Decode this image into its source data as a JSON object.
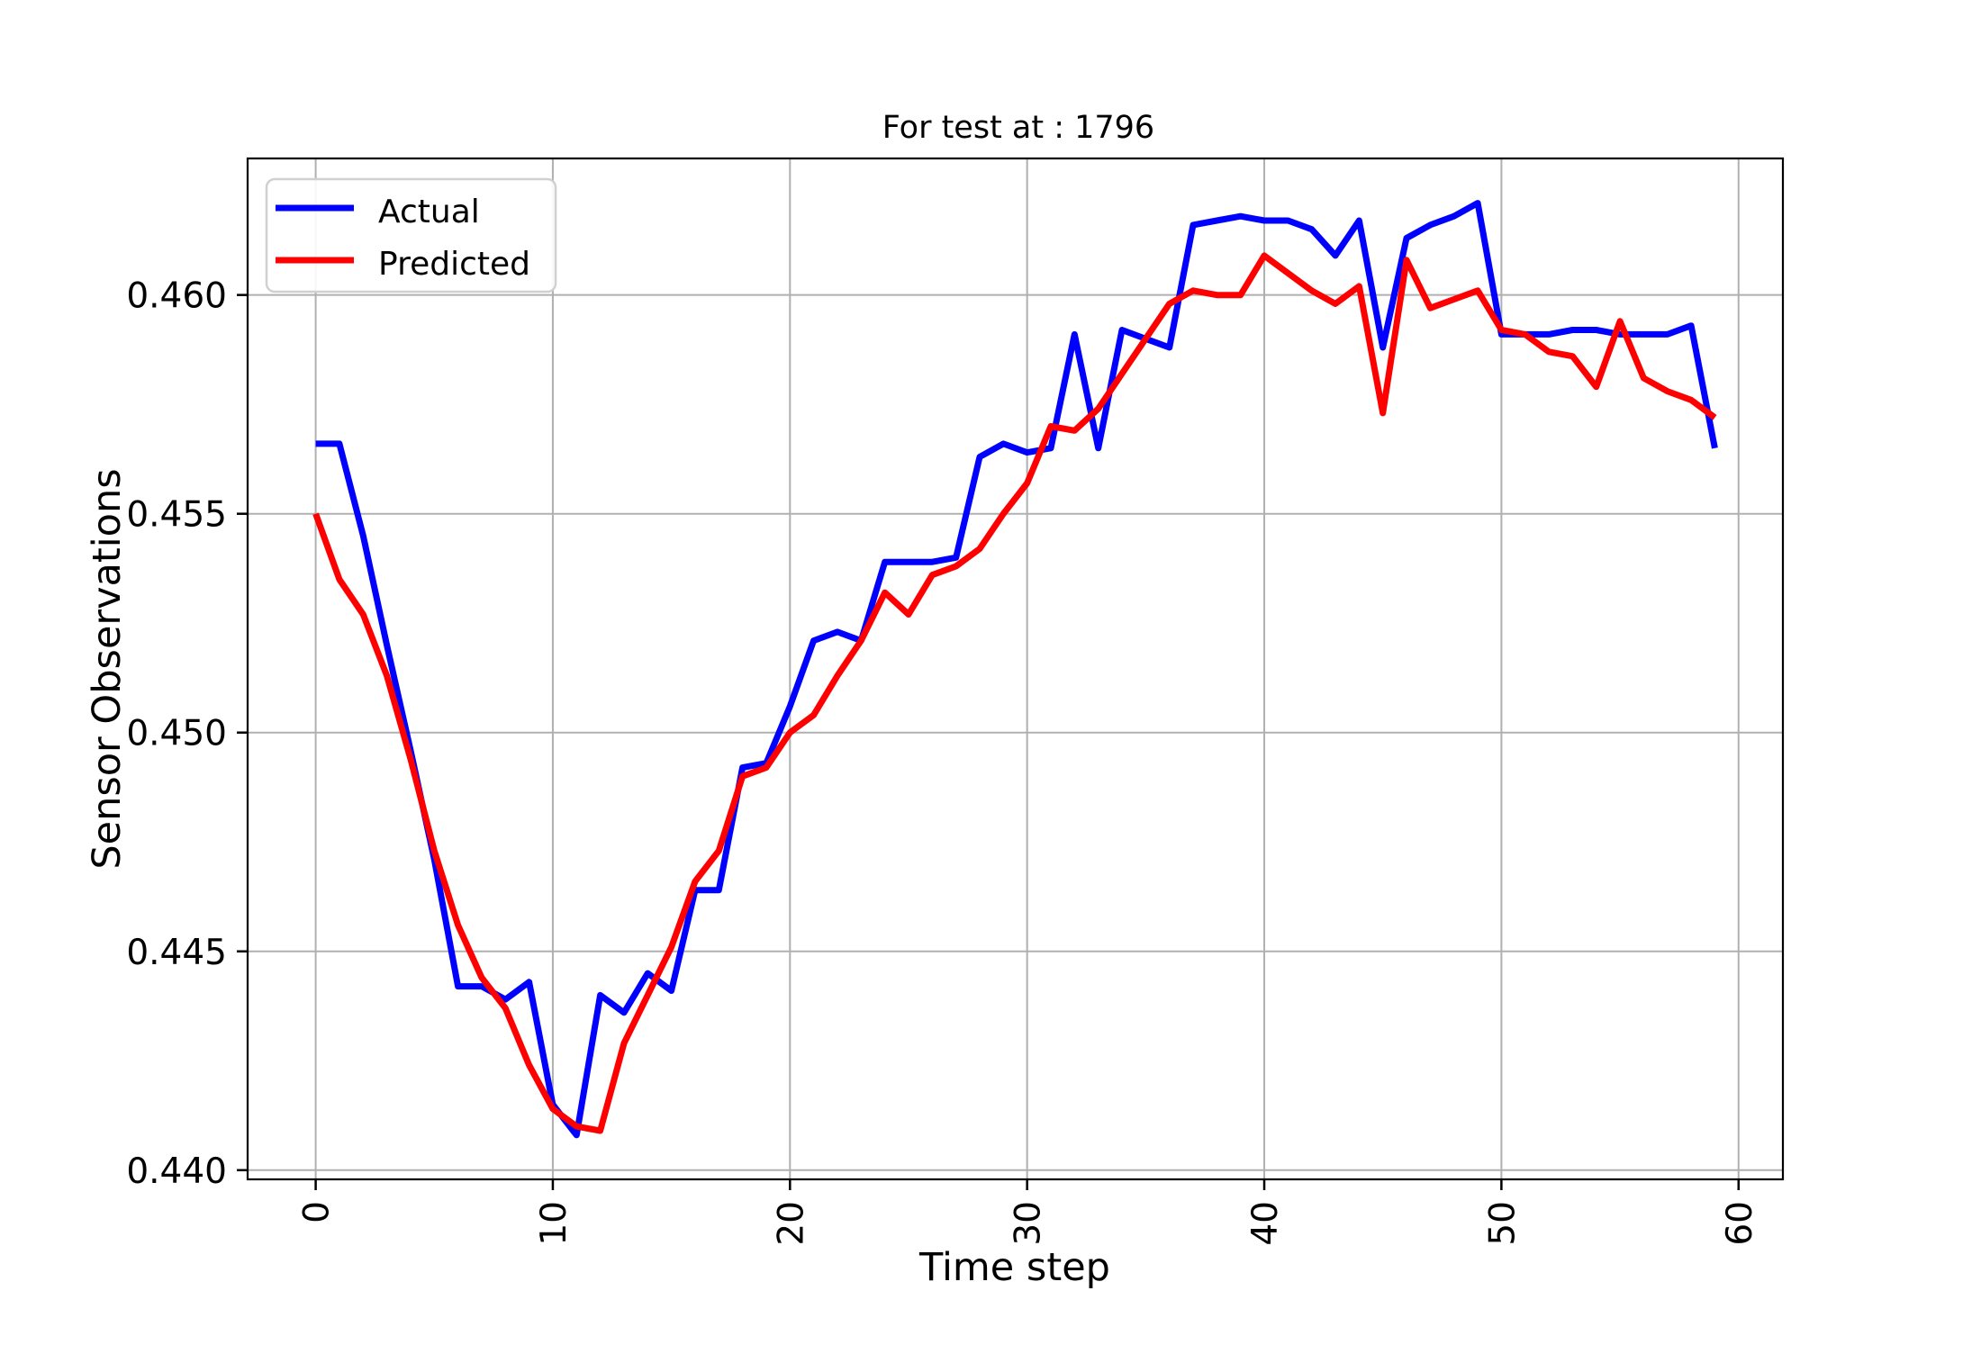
{
  "chart_data": {
    "type": "line",
    "title": "For test at : 1796",
    "xlabel": "Time step",
    "ylabel": "Sensor Observations",
    "grid": true,
    "legend_position": "upper left",
    "background_color": "#ffffff",
    "grid_color": "#b0b0b0",
    "spine_color": "#000000",
    "xlim": [
      -2.87,
      61.87
    ],
    "ylim": [
      0.43979,
      0.46312
    ],
    "xticks": {
      "values": [
        0,
        10,
        20,
        30,
        40,
        50,
        60
      ],
      "labels": [
        "0",
        "10",
        "20",
        "30",
        "40",
        "50",
        "60"
      ]
    },
    "yticks": {
      "values": [
        0.44,
        0.445,
        0.45,
        0.455,
        0.46
      ],
      "labels": [
        "0.440",
        "0.445",
        "0.450",
        "0.455",
        "0.460"
      ]
    },
    "x": [
      0,
      1,
      2,
      3,
      4,
      5,
      6,
      7,
      8,
      9,
      10,
      11,
      12,
      13,
      14,
      15,
      16,
      17,
      18,
      19,
      20,
      21,
      22,
      23,
      24,
      25,
      26,
      27,
      28,
      29,
      30,
      31,
      32,
      33,
      34,
      35,
      36,
      37,
      38,
      39,
      40,
      41,
      42,
      43,
      44,
      45,
      46,
      47,
      48,
      49,
      50,
      51,
      52,
      53,
      54,
      55,
      56,
      57,
      58,
      59
    ],
    "series": [
      {
        "name": "Actual",
        "color": "#0000ff",
        "values": [
          0.4566,
          0.4566,
          0.4545,
          0.452,
          0.4496,
          0.4471,
          0.4442,
          0.4442,
          0.4439,
          0.4443,
          0.4415,
          0.4408,
          0.444,
          0.4436,
          0.4445,
          0.4441,
          0.4464,
          0.4464,
          0.4492,
          0.4493,
          0.4506,
          0.4521,
          0.4523,
          0.4521,
          0.4539,
          0.4539,
          0.4539,
          0.454,
          0.4563,
          0.4566,
          0.4564,
          0.4565,
          0.4591,
          0.4565,
          0.4592,
          0.459,
          0.4588,
          0.4616,
          0.4617,
          0.4618,
          0.4617,
          0.4617,
          0.4615,
          0.4609,
          0.4617,
          0.4588,
          0.4613,
          0.4616,
          0.4618,
          0.4621,
          0.4591,
          0.4591,
          0.4591,
          0.4592,
          0.4592,
          0.4591,
          0.4591,
          0.4591,
          0.4593,
          0.4565
        ]
      },
      {
        "name": "Predicted",
        "color": "#ff0000",
        "values": [
          0.455,
          0.4535,
          0.4527,
          0.4513,
          0.4494,
          0.4473,
          0.4456,
          0.4444,
          0.4437,
          0.4424,
          0.4414,
          0.441,
          0.4409,
          0.4429,
          0.444,
          0.4451,
          0.4466,
          0.4473,
          0.449,
          0.4492,
          0.45,
          0.4504,
          0.4513,
          0.4521,
          0.4532,
          0.4527,
          0.4536,
          0.4538,
          0.4542,
          0.455,
          0.4557,
          0.457,
          0.4569,
          0.4574,
          0.4582,
          0.459,
          0.4598,
          0.4601,
          0.46,
          0.46,
          0.4609,
          0.4605,
          0.4601,
          0.4598,
          0.4602,
          0.4573,
          0.4608,
          0.4597,
          0.4599,
          0.4601,
          0.4592,
          0.4591,
          0.4587,
          0.4586,
          0.4579,
          0.4594,
          0.4581,
          0.4578,
          0.4576,
          0.4572
        ]
      }
    ]
  }
}
